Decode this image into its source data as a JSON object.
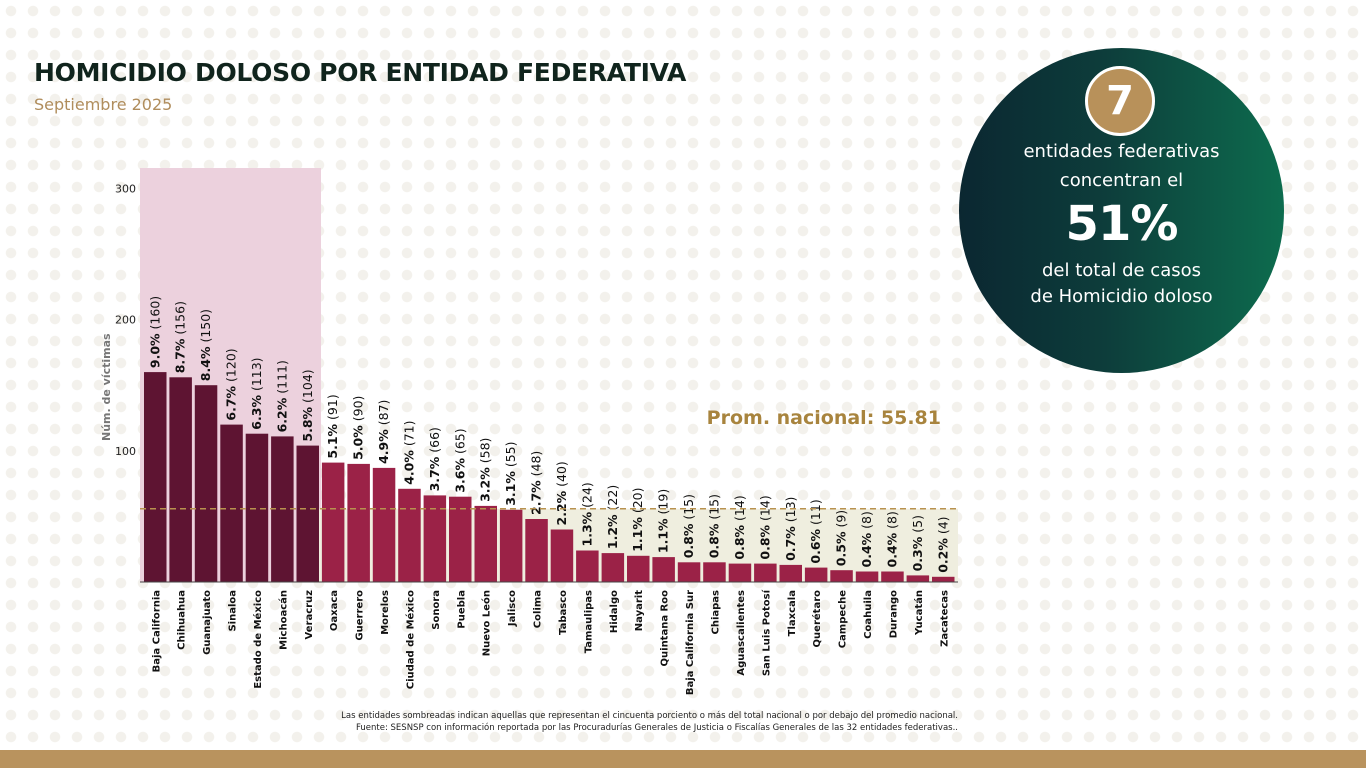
{
  "header": {
    "title": "HOMICIDIO DOLOSO POR ENTIDAD FEDERATIVA",
    "subtitle": "Septiembre 2025"
  },
  "callout": {
    "count": "7",
    "line1": "entidades federativas",
    "line2": "concentran el",
    "percent": "51%",
    "line3": "del total de casos",
    "line4": "de Homicidio doloso"
  },
  "footnote": {
    "line1": "Las entidades sombreadas indican aquellas que representan el cincuenta porciento o más del total nacional o por debajo del promedio nacional.",
    "line2": "Fuente: SESNSP con información reportada por las Procuradurías Generales de Justicia o Fiscalías Generales de las 32 entidades federativas.."
  },
  "colors": {
    "top_bar": "#5e1432",
    "rest_bar": "#9b2247",
    "top_zone": "#ecd1dd",
    "below_avg_zone": "#efeedf",
    "avg_line": "#b8924f",
    "bottom_bar": "#b9935e"
  },
  "chart_data": {
    "type": "bar",
    "title": "",
    "xlabel": "",
    "ylabel": "Núm. de víctimas",
    "ylim": [
      0,
      315
    ],
    "yticks": [
      100,
      200,
      300
    ],
    "average": 55.81,
    "average_label": "Prom. nacional: 55.81",
    "highlight_top_count": 7,
    "categories": [
      "Baja California",
      "Chihuahua",
      "Guanajuato",
      "Sinaloa",
      "Estado de México",
      "Michoacán",
      "Veracruz",
      "Oaxaca",
      "Guerrero",
      "Morelos",
      "Ciudad de México",
      "Sonora",
      "Puebla",
      "Nuevo León",
      "Jalisco",
      "Colima",
      "Tabasco",
      "Tamaulipas",
      "Hidalgo",
      "Nayarit",
      "Quintana Roo",
      "Baja California Sur",
      "Chiapas",
      "Aguascalientes",
      "San Luis Potosí",
      "Tlaxcala",
      "Querétaro",
      "Campeche",
      "Coahuila",
      "Durango",
      "Yucatán",
      "Zacatecas"
    ],
    "values": [
      160,
      156,
      150,
      120,
      113,
      111,
      104,
      91,
      90,
      87,
      71,
      66,
      65,
      58,
      55,
      48,
      40,
      24,
      22,
      20,
      19,
      15,
      15,
      14,
      14,
      13,
      11,
      9,
      8,
      8,
      5,
      4
    ],
    "percent_labels": [
      "9.0%",
      "8.7%",
      "8.4%",
      "6.7%",
      "6.3%",
      "6.2%",
      "5.8%",
      "5.1%",
      "5.0%",
      "4.9%",
      "4.0%",
      "3.7%",
      "3.6%",
      "3.2%",
      "3.1%",
      "2.7%",
      "2.2%",
      "1.3%",
      "1.2%",
      "1.1%",
      "1.1%",
      "0.8%",
      "0.8%",
      "0.8%",
      "0.8%",
      "0.7%",
      "0.6%",
      "0.5%",
      "0.4%",
      "0.4%",
      "0.3%",
      "0.2%"
    ]
  }
}
